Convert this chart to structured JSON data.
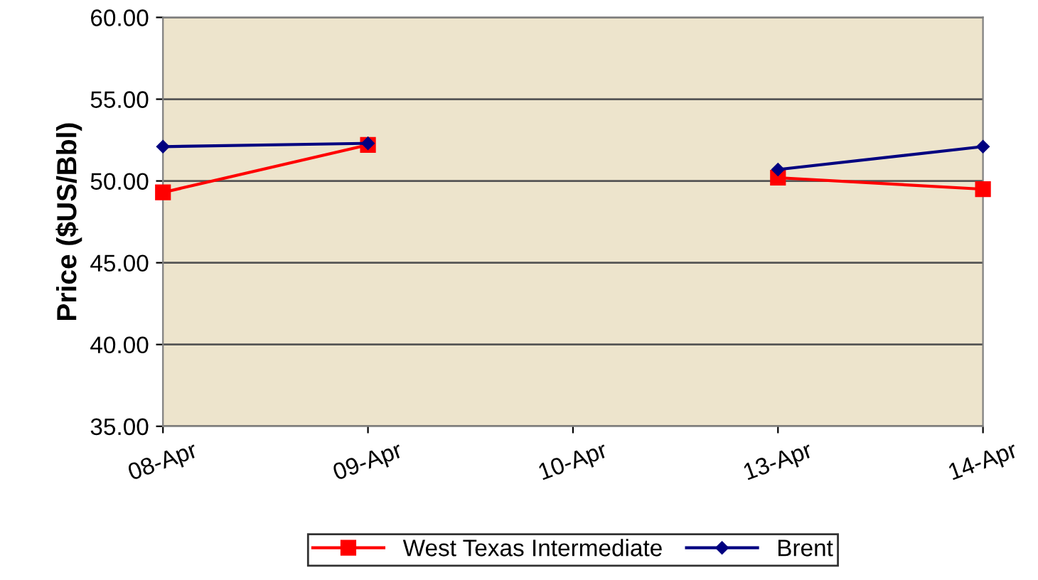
{
  "chart_data": {
    "type": "line",
    "ylabel": "Price ($US/Bbl)",
    "categories": [
      "08-Apr",
      "09-Apr",
      "10-Apr",
      "13-Apr",
      "14-Apr"
    ],
    "series": [
      {
        "name": "West Texas Intermediate",
        "color": "#ff0000",
        "marker": "square",
        "values": [
          49.3,
          52.2,
          null,
          50.2,
          49.5
        ]
      },
      {
        "name": "Brent",
        "color": "#000080",
        "marker": "diamond",
        "values": [
          52.1,
          52.3,
          null,
          50.7,
          52.1
        ]
      }
    ],
    "ylim": [
      35,
      60
    ],
    "yticks": [
      {
        "value": 35,
        "label": "35.00"
      },
      {
        "value": 40,
        "label": "40.00"
      },
      {
        "value": 45,
        "label": "45.00"
      },
      {
        "value": 50,
        "label": "50.00"
      },
      {
        "value": 55,
        "label": "55.00"
      },
      {
        "value": 60,
        "label": "60.00"
      }
    ],
    "grid": "y",
    "legend": "bottom",
    "line_style": "solid"
  }
}
